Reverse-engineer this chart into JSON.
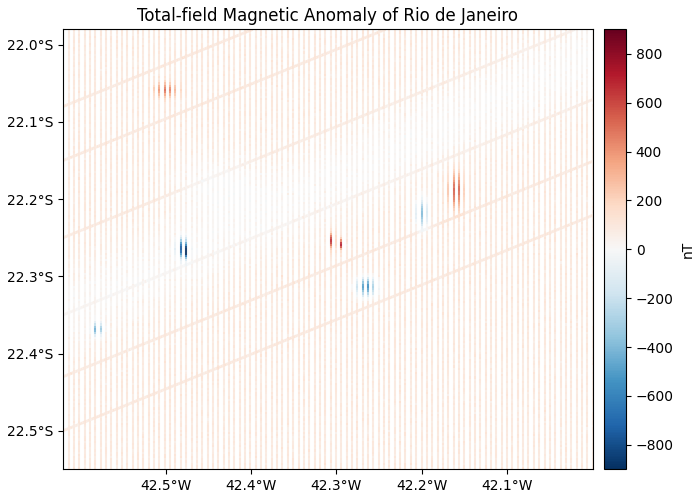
{
  "title": "Total-field Magnetic Anomaly of Rio de Janeiro",
  "colorbar_label": "nT",
  "vmin": -900,
  "vmax": 900,
  "lon_min": -42.62,
  "lon_max": -42.0,
  "lat_min": -22.55,
  "lat_max": -21.98,
  "lon_ticks": [
    -42.5,
    -42.4,
    -42.3,
    -42.2,
    -42.1
  ],
  "lat_ticks": [
    -22.0,
    -22.1,
    -22.2,
    -22.3,
    -22.4,
    -22.5
  ],
  "colormap": "RdBu_r",
  "background_color": "#ffffff",
  "figsize": [
    7.0,
    5.0
  ],
  "dpi": 100,
  "n_vert_lines": 100,
  "n_pts_per_line": 200,
  "base_anomaly": 100,
  "tie_line_slope": 0.45,
  "n_tie_lines": 6
}
